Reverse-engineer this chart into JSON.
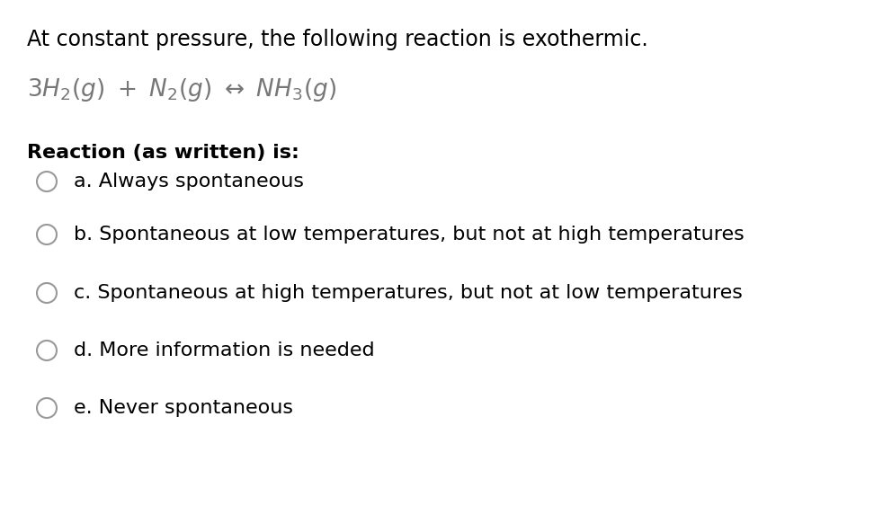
{
  "background_color": "#ffffff",
  "title_text": "At constant pressure, the following reaction is exothermic.",
  "title_fontsize": 17,
  "equation_fontsize": 19,
  "equation_color": "#777777",
  "reaction_label": "Reaction (as written) is:",
  "reaction_label_fontsize": 16,
  "options": [
    {
      "label": "a.",
      "text": "Always spontaneous"
    },
    {
      "label": "b.",
      "text": "Spontaneous at low temperatures, but not at high temperatures"
    },
    {
      "label": "c.",
      "text": "Spontaneous at high temperatures, but not at low temperatures"
    },
    {
      "label": "d.",
      "text": "More information is needed"
    },
    {
      "label": "e.",
      "text": "Never spontaneous"
    }
  ],
  "option_fontsize": 16,
  "sans_font": "DejaVu Sans",
  "serif_font": "DejaVu Serif"
}
